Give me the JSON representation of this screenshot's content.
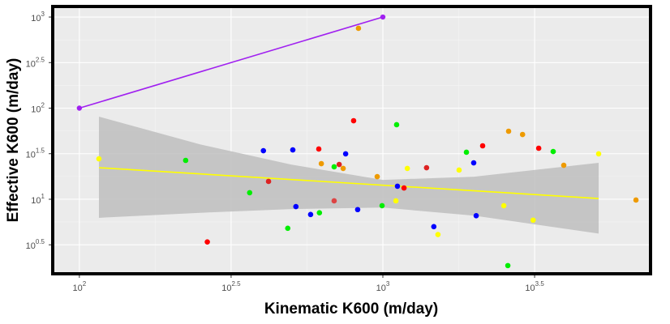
{
  "chart_data": {
    "type": "scatter",
    "x_label": "Kinematic K600 (m/day)",
    "y_label": "Effective K600 (m/day)",
    "log_x": true,
    "log_y": true,
    "grid": true,
    "xlim": [
      81.7,
      7620
    ],
    "ylim": [
      1.52,
      1306
    ],
    "xticks": [
      {
        "value": 100,
        "label": "10",
        "exponent": "2"
      },
      {
        "value": 316.23,
        "label": "10",
        "exponent": "2.5"
      },
      {
        "value": 1000,
        "label": "10",
        "exponent": "3"
      },
      {
        "value": 3162.28,
        "label": "10",
        "exponent": "3.5"
      }
    ],
    "yticks": [
      {
        "value": 3.1623,
        "label": "10",
        "exponent": "0.5"
      },
      {
        "value": 10,
        "label": "10",
        "exponent": "1"
      },
      {
        "value": 31.623,
        "label": "10",
        "exponent": "1.5"
      },
      {
        "value": 100,
        "label": "10",
        "exponent": "2"
      },
      {
        "value": 316.23,
        "label": "10",
        "exponent": "2.5"
      },
      {
        "value": 1000,
        "label": "10",
        "exponent": "3"
      }
    ],
    "series": [
      {
        "type": "ribbon",
        "color": "#bebebe",
        "x": [
          116,
          250,
          500,
          1000,
          2000,
          5140
        ],
        "upper": [
          80.7,
          40,
          24,
          16.3,
          17.7,
          25.1
        ],
        "lower": [
          6.25,
          7.1,
          7.8,
          8.1,
          6.6,
          4.2
        ]
      },
      {
        "type": "line",
        "color": "#ffff00",
        "x": [
          116,
          5140
        ],
        "values": [
          22.2,
          10.2
        ]
      },
      {
        "type": "scatter",
        "x": [
          116,
          224,
          264,
          364,
          404,
          420,
          486,
          505,
          517,
          578,
          627,
          615,
          618,
          691,
          691,
          718,
          740,
          754,
          801,
          826,
          831,
          958,
          994,
          1104,
          1110,
          1117,
          1174,
          1204,
          1393,
          1472,
          1519,
          1783,
          1885,
          1992,
          2030,
          2132,
          2503,
          2596,
          2581,
          2886,
          3127,
          3262,
          3641,
          3945,
          5140,
          6823
        ],
        "values": [
          27.8,
          26.7,
          3.4,
          11.8,
          34.1,
          15.7,
          4.8,
          34.8,
          8.3,
          6.8,
          24.6,
          35.6,
          7.1,
          9.6,
          22.7,
          24.1,
          21.8,
          31.5,
          72.8,
          7.7,
          752,
          17.7,
          8.5,
          9.6,
          65.8,
          13.9,
          13.3,
          21.8,
          22.2,
          5.0,
          4.1,
          20.9,
          32.8,
          25.1,
          6.6,
          38.6,
          8.5,
          55.8,
          1.87,
          51.4,
          5.9,
          36.3,
          33.4,
          23.6,
          31.5,
          9.8
        ],
        "colors": [
          "#ffff00",
          "#00ee00",
          "#ff0000",
          "#00ee00",
          "#0000ff",
          "#dd2222",
          "#00ee00",
          "#0000ff",
          "#0000ff",
          "#0000ff",
          "#ee9a00",
          "#ff0000",
          "#00ee00",
          "#dd4444",
          "#00ee00",
          "#dd2222",
          "#ee9a00",
          "#0000ff",
          "#ff0000",
          "#0000ff",
          "#ee9a00",
          "#ee9a00",
          "#00ee00",
          "#ffff00",
          "#00ee00",
          "#0000ff",
          "#ff0000",
          "#ffff00",
          "#dd2222",
          "#0000ff",
          "#ffff00",
          "#ffff00",
          "#00ee00",
          "#0000ff",
          "#0000ff",
          "#ff0000",
          "#ffff00",
          "#ee9a00",
          "#00ee00",
          "#ee9a00",
          "#ffff00",
          "#ff0000",
          "#00ee00",
          "#ee9a00",
          "#ffff00",
          "#ee9a00"
        ]
      },
      {
        "type": "line",
        "color": "#a020f0",
        "points": true,
        "x": [
          100,
          1000
        ],
        "values": [
          100,
          1000
        ]
      }
    ]
  }
}
